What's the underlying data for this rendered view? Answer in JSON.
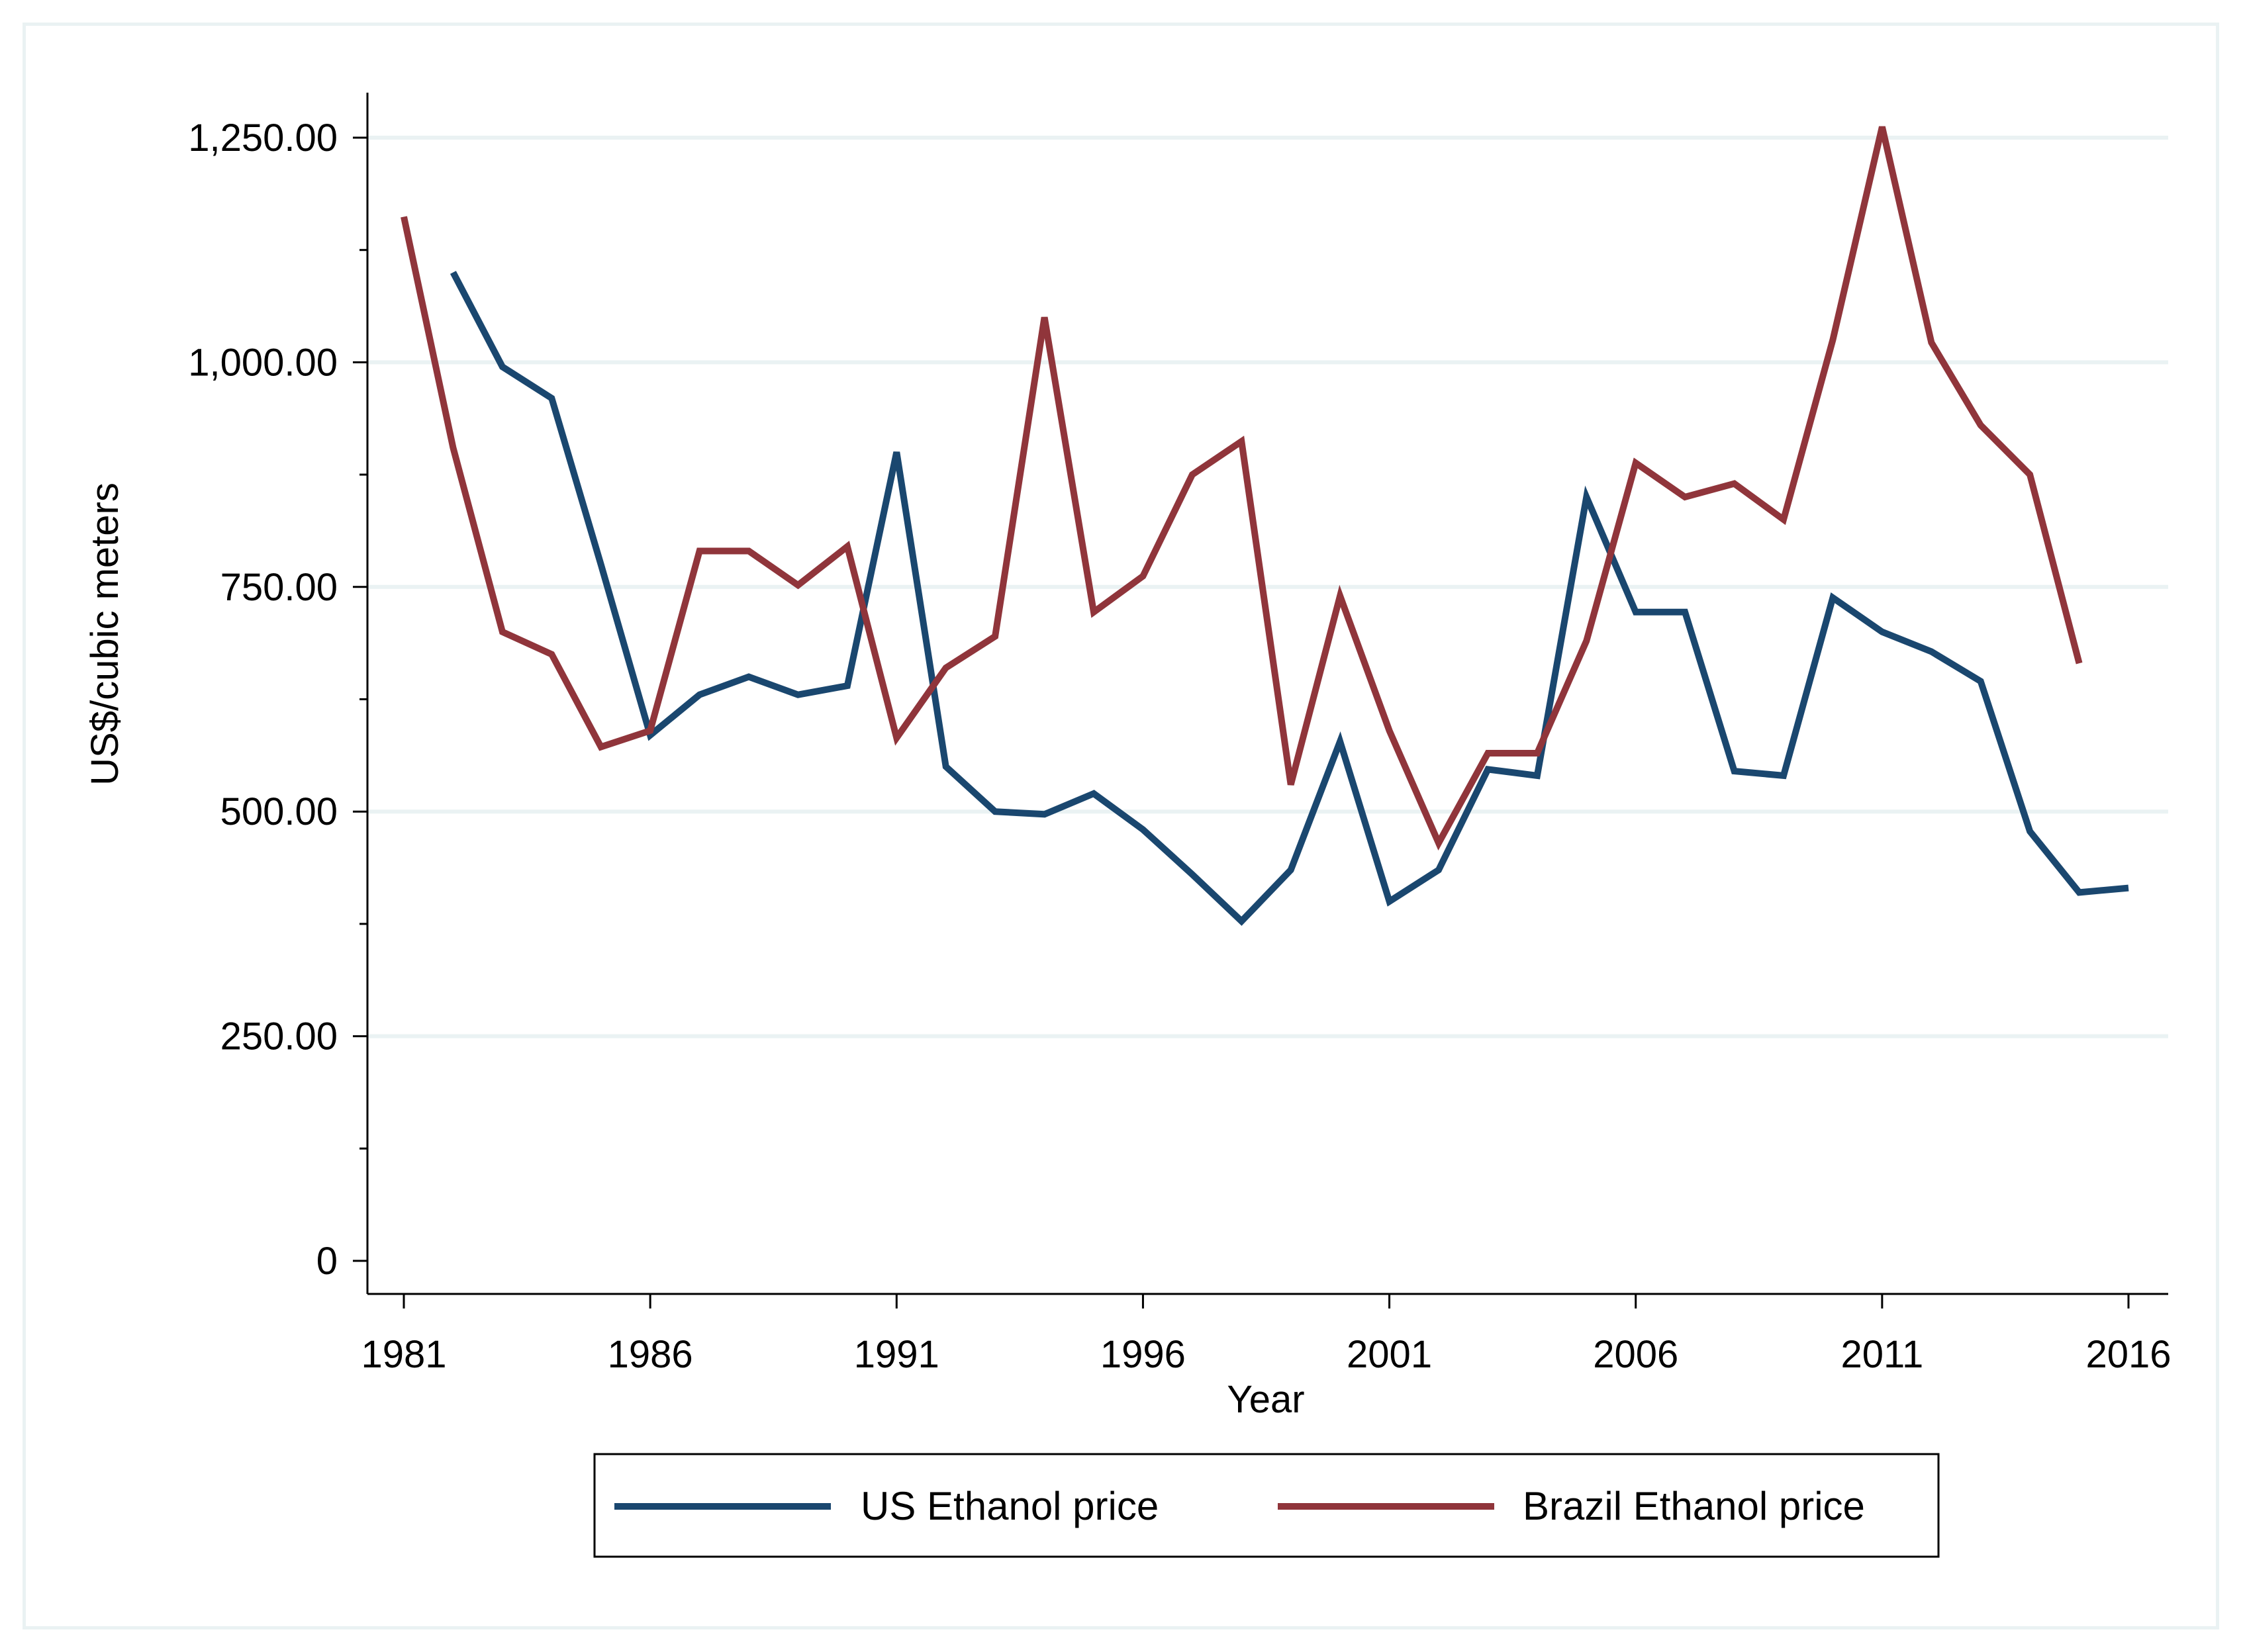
{
  "chart_data": {
    "type": "line",
    "title": "",
    "xlabel": "Year",
    "ylabel": "US$/cubic meters",
    "xlim": [
      1981,
      2016
    ],
    "ylim": [
      0,
      1250
    ],
    "x_ticks": [
      1981,
      1986,
      1991,
      1996,
      2001,
      2006,
      2011,
      2016
    ],
    "x_tick_labels": [
      "1981",
      "1986",
      "1991",
      "1996",
      "2001",
      "2006",
      "2011",
      "2016"
    ],
    "y_ticks": [
      0,
      250,
      500,
      750,
      1000,
      1250
    ],
    "y_tick_labels": [
      "0",
      "250.00",
      "500.00",
      "750.00",
      "1,000.00",
      "1,250.00"
    ],
    "y_minor_ticks": [
      125,
      375,
      625,
      875,
      1125
    ],
    "grid": true,
    "legend_position": "bottom",
    "series": [
      {
        "name": "US Ethanol price",
        "color": "#1a476f",
        "x": [
          1982,
          1983,
          1984,
          1985,
          1986,
          1987,
          1988,
          1989,
          1990,
          1991,
          1992,
          1993,
          1994,
          1995,
          1996,
          1997,
          1998,
          1999,
          2000,
          2001,
          2002,
          2003,
          2004,
          2005,
          2006,
          2007,
          2008,
          2009,
          2010,
          2011,
          2012,
          2013,
          2014,
          2015,
          2016
        ],
        "values": [
          1100,
          995,
          960,
          775,
          585,
          630,
          650,
          630,
          640,
          900,
          550,
          500,
          497,
          520,
          480,
          430,
          378,
          435,
          578,
          400,
          435,
          547,
          540,
          850,
          722,
          722,
          545,
          540,
          738,
          700,
          678,
          645,
          478,
          410,
          415
        ]
      },
      {
        "name": "Brazil Ethanol price",
        "color": "#90353b",
        "x": [
          1981,
          1982,
          1983,
          1984,
          1985,
          1986,
          1987,
          1988,
          1989,
          1990,
          1991,
          1992,
          1993,
          1994,
          1995,
          1996,
          1997,
          1998,
          1999,
          2000,
          2001,
          2002,
          2003,
          2004,
          2005,
          2006,
          2007,
          2008,
          2009,
          2010,
          2011,
          2012,
          2013,
          2014,
          2015
        ],
        "values": [
          1162,
          905,
          700,
          675,
          572,
          590,
          790,
          790,
          752,
          795,
          582,
          660,
          695,
          1050,
          722,
          762,
          875,
          912,
          530,
          740,
          590,
          465,
          565,
          565,
          690,
          888,
          850,
          865,
          825,
          1025,
          1262,
          1022,
          930,
          875,
          665
        ]
      }
    ]
  }
}
